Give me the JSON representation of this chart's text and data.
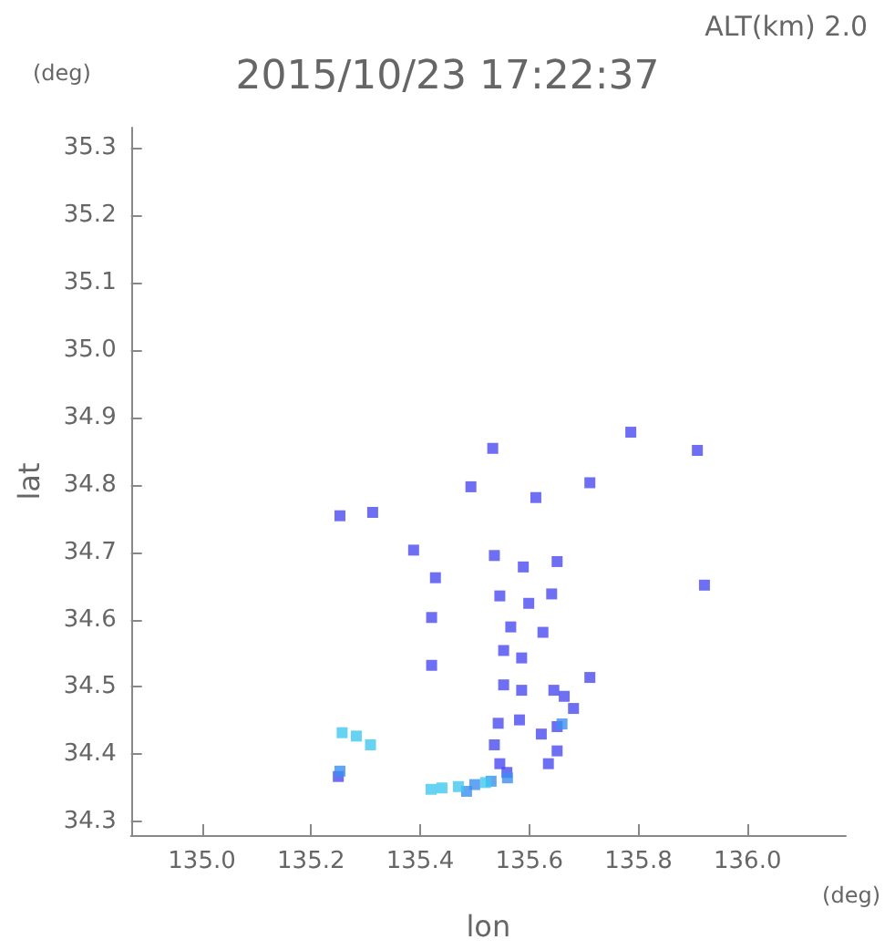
{
  "chart_data": {
    "type": "scatter",
    "title": "2015/10/23 17:22:37",
    "subtitle": "ALT(km) 2.0",
    "xlabel": "lon",
    "ylabel": "lat",
    "annotations": [
      "(deg)",
      "(deg)"
    ],
    "xlim": [
      134.87,
      136.18
    ],
    "ylim": [
      34.28,
      35.33
    ],
    "xticks": [
      {
        "value": 135,
        "label": "135.0"
      },
      135.2,
      135.4,
      135.6,
      135.8,
      {
        "value": 136,
        "label": "136.0"
      }
    ],
    "yticks": [
      34.3,
      34.4,
      34.5,
      34.6,
      34.7,
      34.8,
      34.9,
      {
        "value": 35,
        "label": "35.0"
      },
      35.1,
      35.2,
      35.3
    ],
    "grid": false,
    "marker": "square",
    "series": [
      {
        "color": "#4b4bf0",
        "x": [
          135.786,
          135.908,
          135.921,
          135.533,
          135.612,
          135.711,
          135.493,
          135.313,
          135.253,
          135.388,
          135.428,
          135.536,
          135.651,
          135.589,
          135.546,
          135.599,
          135.641,
          135.421,
          135.566,
          135.625,
          135.553,
          135.586,
          135.553,
          135.586,
          135.645,
          135.421,
          135.664,
          135.711,
          135.681,
          135.651,
          135.622,
          135.582,
          135.543,
          135.536,
          135.635,
          135.546,
          135.651,
          135.559,
          135.25
        ],
        "values": [
          34.878,
          34.851,
          34.651,
          34.854,
          34.781,
          34.803,
          34.797,
          34.759,
          34.754,
          34.703,
          34.662,
          34.695,
          34.686,
          34.678,
          34.635,
          34.624,
          34.638,
          34.603,
          34.589,
          34.581,
          34.554,
          34.543,
          34.503,
          34.495,
          34.495,
          34.532,
          34.486,
          34.514,
          34.468,
          34.441,
          34.43,
          34.451,
          34.446,
          34.414,
          34.386,
          34.386,
          34.405,
          34.373,
          34.367
        ]
      },
      {
        "color": "#3c8ff0",
        "x": [
          135.253,
          135.53,
          135.56,
          135.66,
          135.485,
          135.5
        ],
        "values": [
          34.375,
          34.36,
          34.365,
          34.445,
          34.345,
          34.355
        ]
      },
      {
        "color": "#40c8f0",
        "x": [
          135.257,
          135.283,
          135.309,
          135.42,
          135.44,
          135.47,
          135.52
        ],
        "values": [
          34.432,
          34.427,
          34.414,
          34.348,
          34.35,
          34.352,
          34.358
        ]
      }
    ]
  }
}
